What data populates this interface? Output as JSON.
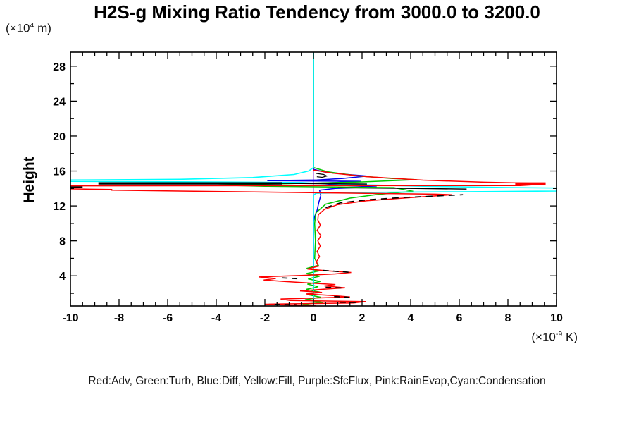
{
  "title": "H2S-g Mixing Ratio Tendency from 3000.0 to 3200.0",
  "y_axis_units": {
    "prefix": "(×10",
    "sup": "4",
    "suffix": " m)"
  },
  "x_axis_units": {
    "prefix": "(×10",
    "sup": "-9",
    "suffix": " K)"
  },
  "y_axis_label": "Height",
  "legend_text": "Red:Adv, Green:Turb, Blue:Diff, Yellow:Fill, Purple:SfcFlux, Pink:RainEvap,Cyan:Condensation",
  "chart_data": {
    "type": "line",
    "title": "H2S-g Mixing Ratio Tendency from 3000.0 to 3200.0",
    "xlabel": "(x10^-9 K)",
    "ylabel": "Height (x10^4 m)",
    "xlim": [
      -10,
      10
    ],
    "ylim": [
      0.55,
      29.6
    ],
    "grid": false,
    "legend_position": "bottom-text-line",
    "x_major_ticks": [
      -10,
      -8,
      -6,
      -4,
      -2,
      0,
      2,
      4,
      6,
      8,
      10
    ],
    "x_tick_labels": [
      "-10",
      "-8",
      "-6",
      "-4",
      "-2",
      "0",
      "2",
      "4",
      "6",
      "8",
      "10"
    ],
    "x_minor_step": 0.5,
    "y_major_ticks": [
      4,
      8,
      12,
      16,
      20,
      24,
      28
    ],
    "y_tick_labels": [
      "4",
      "8",
      "12",
      "16",
      "20",
      "24",
      "28"
    ],
    "y_minor_step": 2,
    "series": [
      {
        "name": "Fill",
        "color": "#ffff00",
        "width": 1.4,
        "dash": "",
        "points": [
          [
            0,
            29.6
          ],
          [
            0,
            0.6
          ]
        ]
      },
      {
        "name": "RainEvap",
        "color": "#ffaec9",
        "width": 1.4,
        "dash": "",
        "points": [
          [
            0,
            29.6
          ],
          [
            0,
            0.6
          ]
        ]
      },
      {
        "name": "SfcFlux",
        "color": "#bb88ff",
        "width": 1.6,
        "dash": "",
        "points": [
          [
            0,
            29.6
          ],
          [
            0,
            0.6
          ]
        ]
      },
      {
        "name": "Diff",
        "color": "#0000ee",
        "width": 1.5,
        "dash": "",
        "points": [
          [
            0,
            29.6
          ],
          [
            0,
            16.2
          ],
          [
            0.5,
            15.85
          ],
          [
            1.4,
            15.6
          ],
          [
            2.2,
            15.42
          ],
          [
            1.2,
            15.15
          ],
          [
            0.15,
            14.98
          ],
          [
            -1.9,
            14.9
          ],
          [
            1.95,
            14.82
          ],
          [
            0.2,
            14.6
          ],
          [
            1.2,
            14.35
          ],
          [
            2.6,
            14.18
          ],
          [
            0.9,
            14.0
          ],
          [
            0.25,
            13.8
          ],
          [
            0.3,
            13.2
          ],
          [
            0.22,
            12.4
          ],
          [
            0.15,
            11.5
          ],
          [
            0.05,
            10.8
          ],
          [
            0,
            10.2
          ],
          [
            0,
            0.6
          ]
        ]
      },
      {
        "name": "Turb",
        "color": "#00c800",
        "width": 1.5,
        "dash": "",
        "points": [
          [
            0,
            29.6
          ],
          [
            0,
            16.4
          ],
          [
            0.6,
            15.9
          ],
          [
            1.8,
            15.45
          ],
          [
            3.2,
            15.15
          ],
          [
            4.25,
            15.0
          ],
          [
            2.0,
            14.75
          ],
          [
            -1.0,
            14.55
          ],
          [
            -3.9,
            14.38
          ],
          [
            -2.0,
            14.25
          ],
          [
            1.5,
            14.15
          ],
          [
            3.3,
            14.1
          ],
          [
            4.1,
            13.68
          ],
          [
            2.6,
            13.3
          ],
          [
            1.5,
            12.9
          ],
          [
            0.5,
            12.2
          ],
          [
            0.1,
            11.2
          ],
          [
            0.05,
            10.0
          ],
          [
            0.08,
            8.0
          ],
          [
            0.05,
            6.0
          ],
          [
            0.2,
            5.2
          ],
          [
            -0.28,
            4.85
          ],
          [
            0.22,
            4.55
          ],
          [
            -0.3,
            4.25
          ],
          [
            0.25,
            3.95
          ],
          [
            -0.22,
            3.65
          ],
          [
            0.28,
            3.35
          ],
          [
            -0.25,
            3.05
          ],
          [
            0.2,
            2.75
          ],
          [
            -0.3,
            2.45
          ],
          [
            0.25,
            2.15
          ],
          [
            -0.25,
            1.85
          ],
          [
            0.3,
            1.55
          ],
          [
            -0.35,
            1.25
          ],
          [
            0.4,
            0.95
          ],
          [
            -0.45,
            0.75
          ],
          [
            0.05,
            0.6
          ]
        ]
      },
      {
        "name": "Condensation",
        "color": "#00ffff",
        "width": 1.6,
        "dash": "",
        "points": [
          [
            0,
            29.6
          ],
          [
            0,
            16.4
          ],
          [
            -0.2,
            16.0
          ],
          [
            -0.8,
            15.6
          ],
          [
            -2.5,
            15.25
          ],
          [
            -5.5,
            15.05
          ],
          [
            -10,
            14.97
          ],
          [
            -10,
            14.82
          ],
          [
            -4,
            14.75
          ],
          [
            -0.5,
            14.68
          ],
          [
            0.1,
            14.6
          ],
          [
            1.5,
            14.45
          ],
          [
            4.5,
            14.25
          ],
          [
            8,
            14.1
          ],
          [
            10,
            14.05
          ],
          [
            10,
            13.7
          ],
          [
            6,
            13.62
          ],
          [
            2,
            13.55
          ],
          [
            0.1,
            13.45
          ],
          [
            0,
            13.2
          ],
          [
            0,
            0.6
          ]
        ]
      },
      {
        "name": "Adv",
        "color": "#ff0000",
        "width": 1.5,
        "dash": "",
        "points": [
          [
            0,
            16.1
          ],
          [
            0.8,
            15.75
          ],
          [
            2.2,
            15.35
          ],
          [
            4.5,
            14.95
          ],
          [
            7.0,
            14.72
          ],
          [
            9.3,
            14.58
          ],
          [
            9.55,
            14.5
          ],
          [
            8.5,
            14.33
          ],
          [
            -10,
            14.3
          ],
          [
            -10,
            13.95
          ],
          [
            -8.3,
            13.88
          ],
          [
            -8.3,
            13.8
          ],
          [
            5.0,
            13.35
          ],
          [
            5.7,
            13.28
          ],
          [
            4.0,
            12.95
          ],
          [
            2.2,
            12.6
          ],
          [
            1.0,
            12.15
          ],
          [
            0.45,
            11.6
          ],
          [
            0.2,
            11.0
          ],
          [
            0.18,
            10.4
          ],
          [
            0.28,
            9.8
          ],
          [
            0.15,
            9.2
          ],
          [
            0.3,
            8.6
          ],
          [
            0.18,
            8.0
          ],
          [
            0.28,
            7.4
          ],
          [
            0.15,
            6.8
          ],
          [
            0.25,
            6.2
          ],
          [
            0.12,
            5.6
          ],
          [
            0.2,
            5.1
          ],
          [
            -0.25,
            4.78
          ],
          [
            0.55,
            4.58
          ],
          [
            1.55,
            4.38
          ],
          [
            0.9,
            4.22
          ],
          [
            -0.4,
            4.05
          ],
          [
            -2.25,
            3.87
          ],
          [
            -1.55,
            3.7
          ],
          [
            -2.05,
            3.52
          ],
          [
            -1.2,
            3.35
          ],
          [
            -0.2,
            3.18
          ],
          [
            0.9,
            3.0
          ],
          [
            0.45,
            2.85
          ],
          [
            1.3,
            2.62
          ],
          [
            0.3,
            2.45
          ],
          [
            -0.55,
            2.28
          ],
          [
            0.35,
            2.1
          ],
          [
            -0.3,
            1.92
          ],
          [
            0.75,
            1.75
          ],
          [
            1.5,
            1.58
          ],
          [
            -1.35,
            1.35
          ],
          [
            -0.95,
            1.18
          ],
          [
            2.15,
            1.05
          ],
          [
            1.65,
            0.9
          ],
          [
            -2.0,
            0.75
          ],
          [
            -1.1,
            0.66
          ],
          [
            0.1,
            0.6
          ]
        ]
      },
      {
        "name": "total-thick-left",
        "color": "#000000",
        "width": 3.2,
        "dash": "",
        "points": [
          [
            -8.85,
            14.58
          ],
          [
            -1.3,
            14.58
          ]
        ]
      },
      {
        "name": "total-thin-center",
        "color": "#000000",
        "width": 1.4,
        "dash": "",
        "points": [
          [
            -1.3,
            14.58
          ],
          [
            2.2,
            14.5
          ]
        ]
      },
      {
        "name": "total-left-edge",
        "color": "#000000",
        "width": 2.2,
        "dash": "",
        "points": [
          [
            -10,
            14.15
          ],
          [
            -9.5,
            14.15
          ]
        ]
      },
      {
        "name": "total-shelf",
        "color": "#000000",
        "width": 1.4,
        "dash": "",
        "points": [
          [
            1.0,
            14.08
          ],
          [
            4.2,
            14.0
          ],
          [
            6.3,
            13.93
          ]
        ]
      },
      {
        "name": "total-bulge-dash",
        "color": "#000000",
        "width": 1.6,
        "dash": "9 7",
        "points": [
          [
            0.5,
            11.8
          ],
          [
            1.1,
            12.35
          ],
          [
            2.2,
            12.7
          ],
          [
            3.6,
            12.95
          ],
          [
            5.1,
            13.15
          ],
          [
            6.15,
            13.28
          ]
        ]
      },
      {
        "name": "total-hook",
        "color": "#000000",
        "width": 1.2,
        "dash": "",
        "points": [
          [
            0.12,
            15.72
          ],
          [
            0.42,
            15.6
          ],
          [
            0.55,
            15.42
          ],
          [
            0.36,
            15.28
          ],
          [
            0.14,
            15.34
          ]
        ]
      },
      {
        "name": "total-low-dash-1",
        "color": "#000000",
        "width": 1.6,
        "dash": "8 6",
        "points": [
          [
            0.4,
            4.62
          ],
          [
            1.5,
            4.4
          ]
        ]
      },
      {
        "name": "total-low-dash-2",
        "color": "#000000",
        "width": 1.6,
        "dash": "8 6",
        "points": [
          [
            -1.3,
            3.76
          ],
          [
            -0.55,
            3.66
          ]
        ]
      },
      {
        "name": "total-low-dash-3",
        "color": "#000000",
        "width": 1.6,
        "dash": "8 6",
        "points": [
          [
            0.5,
            2.68
          ],
          [
            1.25,
            2.6
          ]
        ]
      },
      {
        "name": "total-low-dash-4",
        "color": "#000000",
        "width": 1.6,
        "dash": "8 6",
        "points": [
          [
            0.85,
            1.62
          ],
          [
            1.45,
            1.56
          ]
        ]
      },
      {
        "name": "total-low-dash-5",
        "color": "#000000",
        "width": 1.6,
        "dash": "8 6",
        "points": [
          [
            1.1,
            0.98
          ],
          [
            1.85,
            0.94
          ]
        ]
      },
      {
        "name": "total-low-dash-6",
        "color": "#000000",
        "width": 1.6,
        "dash": "8 6",
        "points": [
          [
            -1.6,
            0.73
          ],
          [
            -0.7,
            0.68
          ]
        ]
      },
      {
        "name": "adv-thick-right",
        "color": "#ff0000",
        "width": 3.4,
        "dash": "",
        "points": [
          [
            8.3,
            14.57
          ],
          [
            9.55,
            14.57
          ]
        ]
      }
    ],
    "series_colors": {
      "Adv": "#ff0000",
      "Turb": "#00c800",
      "Diff": "#0000ee",
      "Fill": "#ffff00",
      "SfcFlux": "#bb88ff",
      "RainEvap": "#ffaec9",
      "Condensation": "#00ffff"
    }
  }
}
